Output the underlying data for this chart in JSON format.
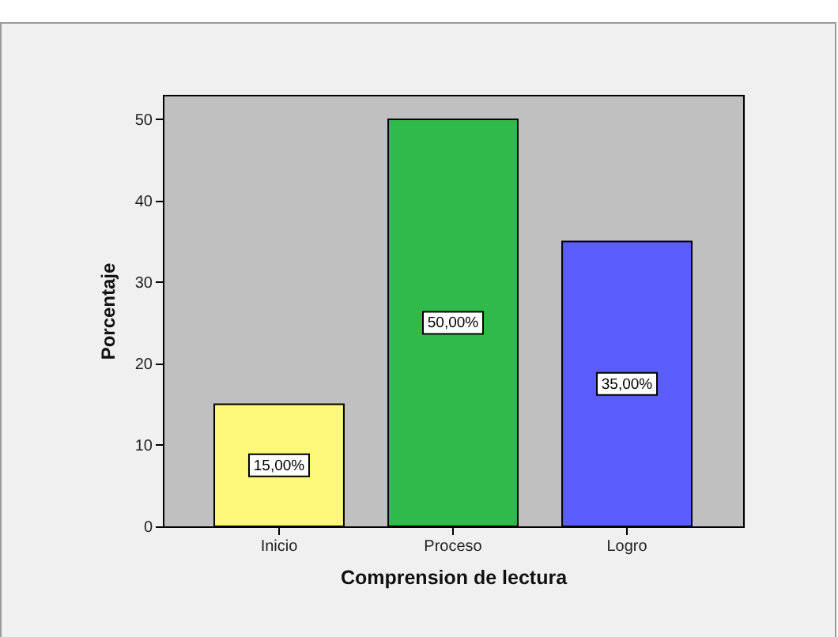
{
  "chart_data": {
    "type": "bar",
    "xlabel": "Comprension de lectura",
    "ylabel": "Porcentaje",
    "categories": [
      "Inicio",
      "Proceso",
      "Logro"
    ],
    "values": [
      15,
      50,
      35
    ],
    "colors": [
      "#fbf87a",
      "#2fba4a",
      "#5a5dfb"
    ],
    "value_labels": [
      "15,00%",
      "50,00%",
      "35,00%"
    ],
    "ylim": [
      0,
      53
    ],
    "yticks": [
      0,
      10,
      20,
      30,
      40,
      50
    ],
    "grid": false
  }
}
